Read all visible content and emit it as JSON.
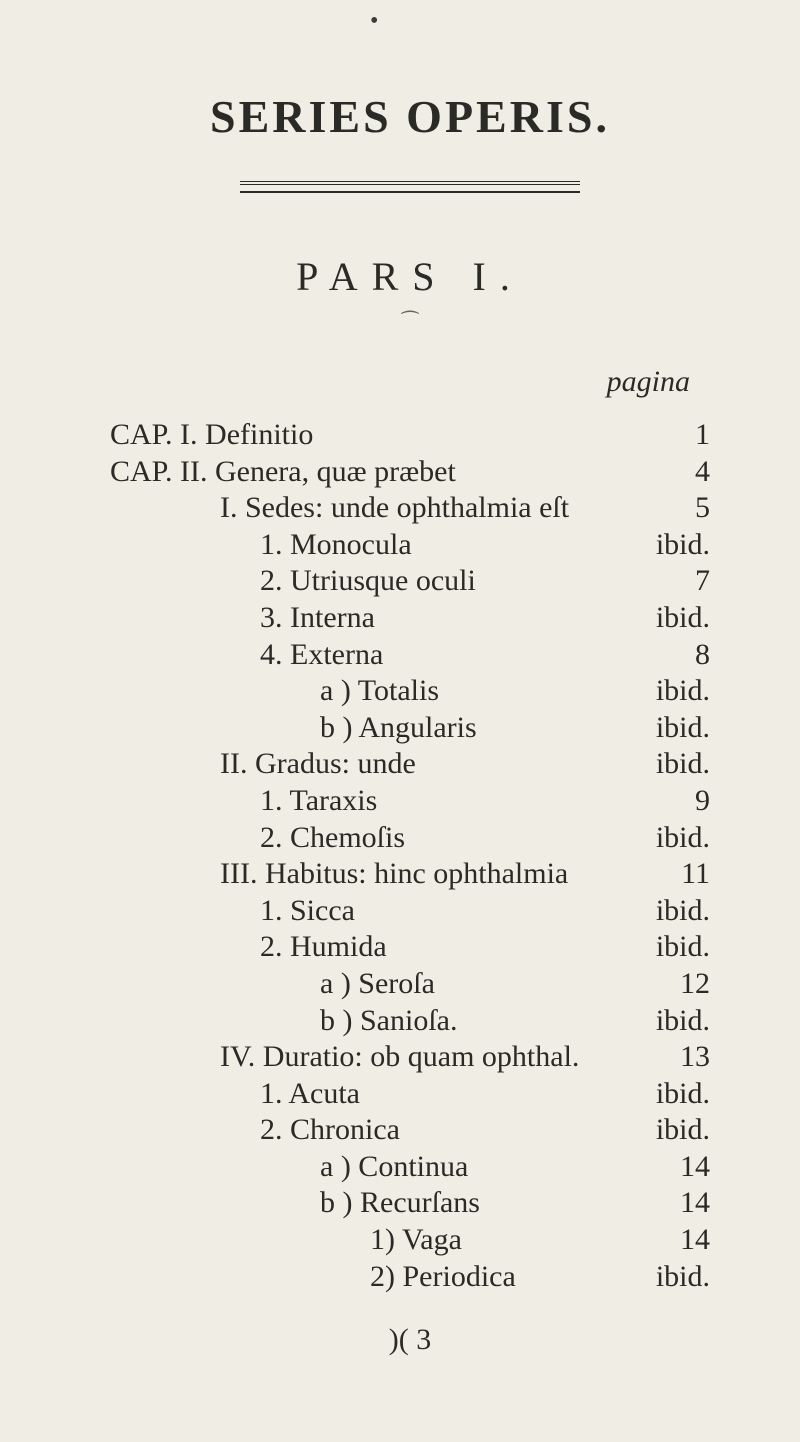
{
  "title": "SERIES OPERIS.",
  "pars": "PARS I.",
  "pagina_label": "pagina",
  "signature": ")( 3",
  "entries": [
    {
      "indent": "ind1",
      "label": "CAP. I. Definitio",
      "page": "1"
    },
    {
      "indent": "ind1",
      "label": "CAP. II. Genera, quæ præbet",
      "page": "4"
    },
    {
      "indent": "ind2",
      "label": "I. Sedes: unde ophthalmia eſt",
      "page": "5"
    },
    {
      "indent": "ind3",
      "label": "1. Monocula",
      "page": "ibid."
    },
    {
      "indent": "ind3",
      "label": "2. Utriusque oculi",
      "page": "7"
    },
    {
      "indent": "ind3",
      "label": "3. Interna",
      "page": "ibid."
    },
    {
      "indent": "ind3",
      "label": "4. Externa",
      "page": "8"
    },
    {
      "indent": "ind4",
      "label": "a ) Totalis",
      "page": "ibid."
    },
    {
      "indent": "ind4",
      "label": "b ) Angularis",
      "page": "ibid."
    },
    {
      "indent": "ind2",
      "label": "II. Gradus: unde",
      "page": "ibid."
    },
    {
      "indent": "ind3",
      "label": "1. Taraxis",
      "page": "9"
    },
    {
      "indent": "ind3",
      "label": "2. Chemoſis",
      "page": "ibid."
    },
    {
      "indent": "ind2",
      "label": "III. Habitus: hinc ophthalmia",
      "page": "11"
    },
    {
      "indent": "ind3",
      "label": "1. Sicca",
      "page": "ibid."
    },
    {
      "indent": "ind3",
      "label": "2. Humida",
      "page": "ibid."
    },
    {
      "indent": "ind4",
      "label": "a ) Seroſa",
      "page": "12"
    },
    {
      "indent": "ind4",
      "label": "b ) Sanioſa.",
      "page": "ibid."
    },
    {
      "indent": "ind2",
      "label": "IV. Duratio: ob quam ophthal.",
      "page": "13"
    },
    {
      "indent": "ind3",
      "label": "1. Acuta",
      "page": "ibid."
    },
    {
      "indent": "ind3",
      "label": "2. Chronica",
      "page": "ibid."
    },
    {
      "indent": "ind4",
      "label": "a ) Continua",
      "page": "14"
    },
    {
      "indent": "ind4",
      "label": "b ) Recurſans",
      "page": "14"
    },
    {
      "indent": "ind5",
      "label": "1) Vaga",
      "page": "14"
    },
    {
      "indent": "ind5",
      "label": "2) Periodica",
      "page": "ibid."
    }
  ],
  "colors": {
    "background": "#f0ede4",
    "text": "#2a2a26"
  }
}
